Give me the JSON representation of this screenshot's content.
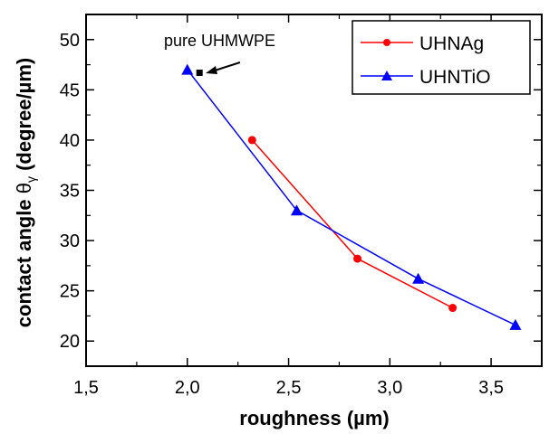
{
  "chart_data": {
    "type": "line",
    "title": "",
    "xlabel": "roughness (µm)",
    "ylabel": "contact angle θγ (degree/µm)",
    "ylabel_parts": {
      "before": "contact angle ",
      "theta": "θ",
      "sub": "γ",
      "after": " (degree/µm)"
    },
    "xlim": [
      1.5,
      3.75
    ],
    "ylim": [
      17.5,
      52.5
    ],
    "xticks": [
      "1,5",
      "2,0",
      "2,5",
      "3,0",
      "3,5"
    ],
    "xtick_values": [
      1.5,
      2.0,
      2.5,
      3.0,
      3.5
    ],
    "yticks": [
      "20",
      "25",
      "30",
      "35",
      "40",
      "45",
      "50"
    ],
    "ytick_values": [
      20,
      25,
      30,
      35,
      40,
      45,
      50
    ],
    "grid": false,
    "legend_position": "top-right",
    "series": [
      {
        "name": "UHNAg",
        "color": "#ff0000",
        "marker": "circle",
        "x": [
          2.32,
          2.84,
          3.31
        ],
        "y": [
          40.0,
          28.2,
          23.3
        ]
      },
      {
        "name": "UHNTiO",
        "color": "#0000ff",
        "marker": "triangle",
        "x": [
          2.0,
          2.54,
          3.14,
          3.62
        ],
        "y": [
          47.0,
          33.0,
          26.2,
          21.6
        ]
      }
    ],
    "point": {
      "label": "pure UHMWPE",
      "x": 2.06,
      "y": 46.7,
      "color": "#000000",
      "marker": "square"
    }
  }
}
